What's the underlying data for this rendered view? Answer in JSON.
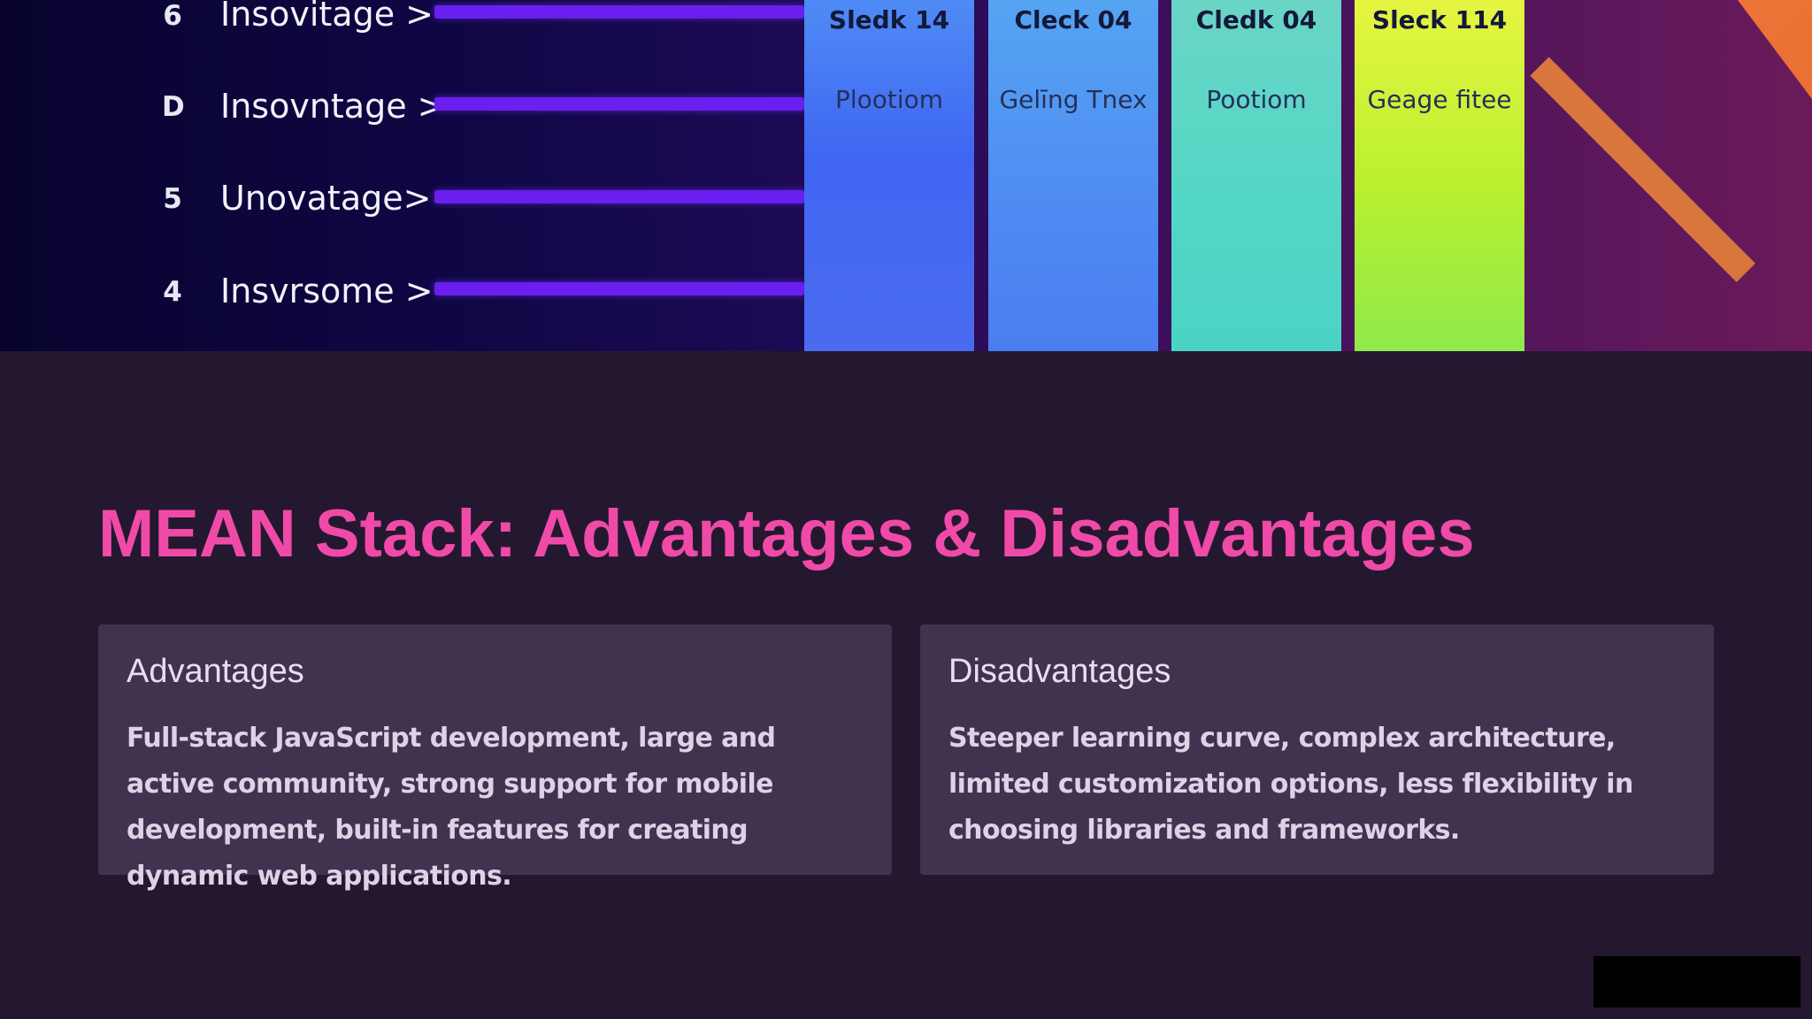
{
  "hero": {
    "rows": [
      {
        "num": "6",
        "label": "Insovitage >"
      },
      {
        "num": "D",
        "label": "Insovntage >"
      },
      {
        "num": "5",
        "label": "Unovatage>"
      },
      {
        "num": "4",
        "label": "Insvrsome >"
      }
    ],
    "columns": [
      {
        "title": "Sledk 14",
        "subtitle": "Plootiom",
        "color": "#3f66f2"
      },
      {
        "title": "Cleck 04",
        "subtitle": "Gelīng Tnex",
        "color": "#4f8df2"
      },
      {
        "title": "Cledk 04",
        "subtitle": "Pootiom",
        "color": "#54d6c5"
      },
      {
        "title": "Sleck 114",
        "subtitle": "Geage fitee",
        "color": "#c8f238"
      }
    ],
    "bar_color": "#6a1ef0"
  },
  "main": {
    "title": "MEAN Stack: Advantages & Disadvantages",
    "title_color": "#f04aa8",
    "cards": [
      {
        "heading": "Advantages",
        "body": "Full-stack JavaScript development, large and active community, strong support for mobile development, built-in features for creating dynamic web applications."
      },
      {
        "heading": "Disadvantages",
        "body": "Steeper learning curve, complex architecture, limited customization options, less flexibility in choosing libraries and frameworks."
      }
    ]
  },
  "colors": {
    "background": "#241830",
    "card_background": "#41324f"
  }
}
